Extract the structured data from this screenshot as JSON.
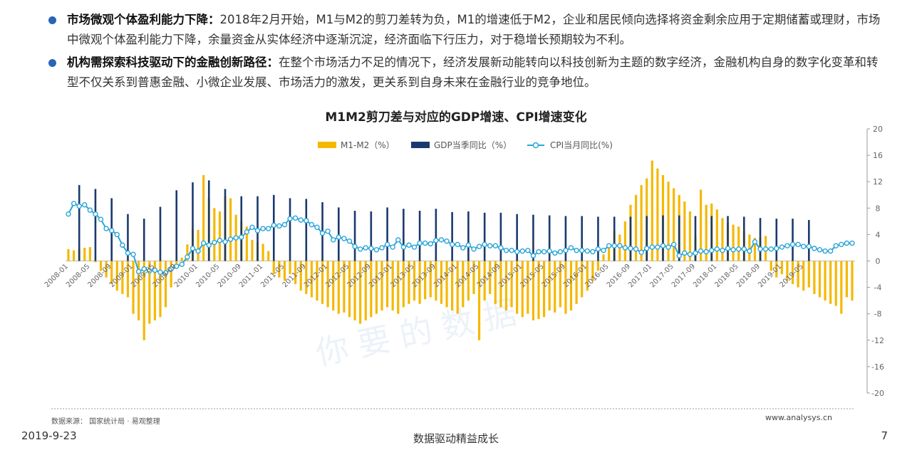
{
  "bullets": [
    {
      "title": "市场微观个体盈利能力下降：",
      "text": "2018年2月开始，M1与M2的剪刀差转为负，M1的增速低于M2，企业和居民倾向选择将资金剩余应用于定期储蓄或理财，市场中微观个体盈利能力下降，余量资金从实体经济中逐渐沉淀，经济面临下行压力，对于稳增长预期较为不利。"
    },
    {
      "title": "机构需探索科技驱动下的金融创新路径：",
      "text": "在整个市场活力不足的情况下，经济发展新动能转向以科技创新为主题的数字经济，金融机构自身的数字化变革和转型不仅关系到普惠金融、小微企业发展、市场活力的激发，更关系到自身未来在金融行业的竞争地位。"
    }
  ],
  "colors": {
    "m1m2": "#f5b800",
    "gdp": "#1a3a6e",
    "cpi": "#2aa5d8",
    "bullet": "#2a63b8"
  },
  "chart_data": {
    "type": "bar+line",
    "title": "M1M2剪刀差与对应的GDP增速、CPI增速变化",
    "legend": [
      "M1-M2（%）",
      "GDP当季同比（%）",
      "CPI当月同比(%)"
    ],
    "legend_position": "top",
    "y_axis": {
      "position": "right",
      "min": -20,
      "max": 20,
      "ticks": [
        20,
        16,
        12,
        8,
        4,
        0,
        -4,
        -8,
        -12,
        -16,
        -20
      ]
    },
    "x_ticks": [
      "2008-01",
      "2008-05",
      "2008-09",
      "2009-01",
      "2009-05",
      "2009-09",
      "2010-01",
      "2010-05",
      "2010-09",
      "2011-01",
      "2011-05",
      "2011-09",
      "2012-01",
      "2012-05",
      "2012-09",
      "2013-01",
      "2013-05",
      "2013-09",
      "2014-01",
      "2014-05",
      "2014-09",
      "2015-01",
      "2015-05",
      "2015-09",
      "2016-01",
      "2016-05",
      "2016-09",
      "2017-01",
      "2017-05",
      "2017-09",
      "2018-01",
      "2018-05",
      "2018-09",
      "2019-01",
      "2019-05"
    ],
    "m1m2": [
      1.8,
      1.6,
      1.8,
      2.0,
      2.1,
      -0.2,
      -1.5,
      -2.5,
      -3.5,
      -4.5,
      -5.0,
      -5.5,
      -8.0,
      -9.0,
      -12.0,
      -9.5,
      -9.0,
      -8.5,
      -7.0,
      -4.0,
      -1.0,
      0.5,
      2.5,
      4.8,
      4.7,
      13.0,
      9.5,
      8.0,
      7.5,
      9.8,
      9.5,
      7.0,
      6.0,
      5.2,
      3.2,
      2.8,
      2.6,
      1.5,
      -2.0,
      -2.5,
      -3.0,
      -2.0,
      -3.5,
      -4.5,
      -5.0,
      -5.5,
      -6.0,
      -6.5,
      -7.0,
      -7.5,
      -8.0,
      -7.8,
      -8.5,
      -9.0,
      -9.5,
      -9.0,
      -8.5,
      -8.0,
      -7.5,
      -7.0,
      -7.5,
      -8.0,
      -7.0,
      -6.5,
      -6.0,
      -6.5,
      -5.8,
      -5.5,
      -6.0,
      -6.5,
      -7.0,
      -7.5,
      -8.0,
      -7.0,
      -6.0,
      -5.0,
      -12.0,
      -6.0,
      -5.0,
      -6.5,
      -7.0,
      -7.5,
      -7.0,
      -8.0,
      -8.5,
      -8.0,
      -9.0,
      -8.8,
      -8.5,
      -7.5,
      -7.8,
      -7.0,
      -8.0,
      -7.5,
      -6.5,
      -5.5,
      -4.5,
      -3.0,
      -1.5,
      1.0,
      2.5,
      4.5,
      4.0,
      6.0,
      8.5,
      10.0,
      11.5,
      12.5,
      15.2,
      14.0,
      13.0,
      12.0,
      11.0,
      10.0,
      9.0,
      7.5,
      3.7,
      10.8,
      8.5,
      8.7,
      7.8,
      6.5,
      5.8,
      5.5,
      5.2,
      4.5,
      4.0,
      3.5,
      3.5,
      3.8,
      -1.5,
      -2.5,
      -2.0,
      -3.0,
      -3.5,
      -4.0,
      -4.5,
      -4.0,
      -5.0,
      -5.5,
      -6.0,
      -6.5,
      -6.8,
      -8.0,
      -5.5,
      -6.0,
      -5.5,
      -4.5,
      -4.2
    ],
    "gdp_quarters": [
      11.5,
      10.9,
      9.5,
      7.1,
      6.4,
      8.2,
      10.7,
      11.9,
      12.2,
      10.9,
      9.8,
      9.8,
      10.0,
      9.5,
      9.4,
      8.9,
      8.1,
      7.6,
      7.5,
      8.1,
      7.9,
      7.6,
      7.9,
      7.4,
      7.5,
      7.3,
      7.3,
      7.1,
      7.0,
      6.9,
      6.8,
      6.8,
      6.7,
      6.7,
      6.7,
      6.8,
      6.9,
      6.9,
      6.8,
      6.8,
      6.8,
      6.7,
      6.5,
      6.4,
      6.4,
      6.2
    ],
    "cpi": [
      7.1,
      8.7,
      8.3,
      8.5,
      7.7,
      7.1,
      6.3,
      4.9,
      4.6,
      4.0,
      2.4,
      1.2,
      1.0,
      -1.6,
      -1.2,
      -1.5,
      -1.4,
      -1.7,
      -1.8,
      -1.2,
      -0.8,
      -0.5,
      0.6,
      1.9,
      1.5,
      2.7,
      2.4,
      2.8,
      3.1,
      2.9,
      3.3,
      3.5,
      3.6,
      4.4,
      5.1,
      4.6,
      4.9,
      4.9,
      5.4,
      5.3,
      5.5,
      6.4,
      6.5,
      6.2,
      6.1,
      5.5,
      5.1,
      4.2,
      4.5,
      3.2,
      3.6,
      3.4,
      3.0,
      2.2,
      1.8,
      2.0,
      1.9,
      1.7,
      2.0,
      2.5,
      2.1,
      3.2,
      2.1,
      2.4,
      2.1,
      2.7,
      2.7,
      2.6,
      3.1,
      3.2,
      3.0,
      2.5,
      2.5,
      2.0,
      2.4,
      1.8,
      2.2,
      2.5,
      2.3,
      2.3,
      2.0,
      1.6,
      1.6,
      1.4,
      1.5,
      1.6,
      0.8,
      1.4,
      1.4,
      1.5,
      1.2,
      1.4,
      1.6,
      2.0,
      1.6,
      1.6,
      1.5,
      1.4,
      1.8,
      1.6,
      2.3,
      2.3,
      2.3,
      2.0,
      1.9,
      1.8,
      1.3,
      1.9,
      2.1,
      2.1,
      2.3,
      2.1,
      2.5,
      0.8,
      1.2,
      1.0,
      1.2,
      1.5,
      1.4,
      1.6,
      1.8,
      1.6,
      1.9,
      1.7,
      1.8,
      1.8,
      1.5,
      2.9,
      1.8,
      1.8,
      1.8,
      1.9,
      2.1,
      2.3,
      2.5,
      2.5,
      2.2,
      2.2,
      1.9,
      1.7,
      1.5,
      1.5,
      2.3,
      2.5,
      2.7,
      2.7
    ],
    "axis_start": "2008-01"
  },
  "footer": {
    "source": "数据来源：  国家统计局 · 易观整理",
    "website": "www.analysys.cn",
    "date": "2019-9-23",
    "slogan": "数据驱动精益成长",
    "page": "7"
  }
}
